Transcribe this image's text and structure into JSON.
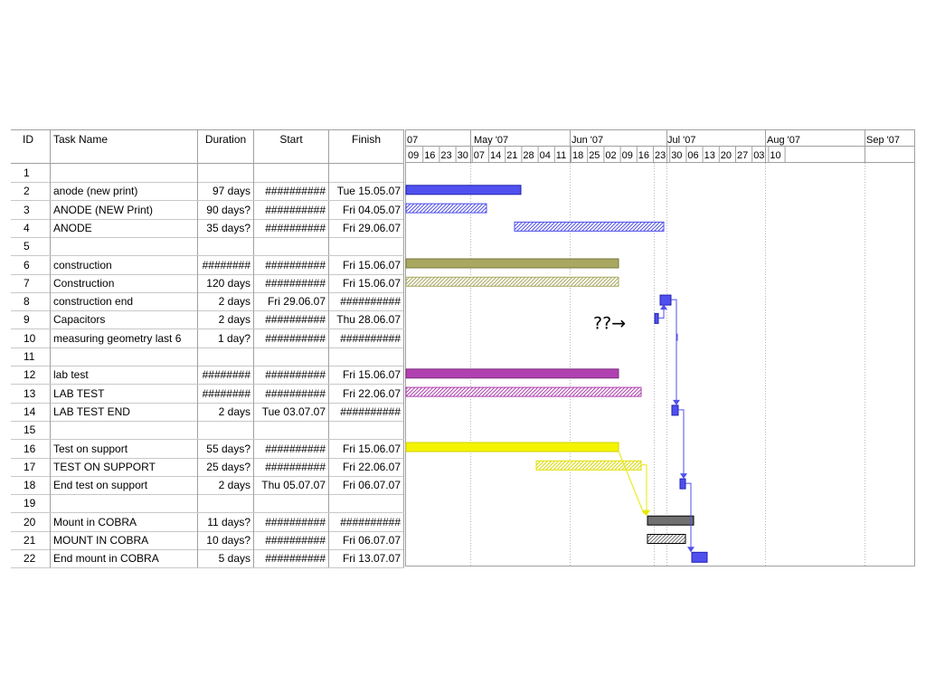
{
  "columns": {
    "id": "ID",
    "name": "Task Name",
    "duration": "Duration",
    "start": "Start",
    "finish": "Finish"
  },
  "timescale": {
    "months": [
      "07",
      "May '07",
      "Jun '07",
      "Jul '07",
      "Aug '07",
      "Sep '07"
    ],
    "weeks": [
      "09",
      "16",
      "23",
      "30",
      "07",
      "14",
      "21",
      "28",
      "04",
      "11",
      "18",
      "25",
      "02",
      "09",
      "16",
      "23",
      "30",
      "06",
      "13",
      "20",
      "27",
      "03",
      "10"
    ]
  },
  "tasks": [
    {
      "id": "1",
      "name": "",
      "duration": "",
      "start": "",
      "finish": ""
    },
    {
      "id": "2",
      "name": "anode (new print)",
      "duration": "97 days",
      "start": "##########",
      "finish": "Tue 15.05.07"
    },
    {
      "id": "3",
      "name": "ANODE (NEW Print)",
      "duration": "90 days?",
      "start": "##########",
      "finish": "Fri 04.05.07"
    },
    {
      "id": "4",
      "name": "ANODE",
      "duration": "35 days?",
      "start": "##########",
      "finish": "Fri 29.06.07"
    },
    {
      "id": "5",
      "name": "",
      "duration": "",
      "start": "",
      "finish": ""
    },
    {
      "id": "6",
      "name": "construction",
      "duration": "########",
      "start": "##########",
      "finish": "Fri 15.06.07"
    },
    {
      "id": "7",
      "name": "Construction",
      "duration": "120 days",
      "start": "##########",
      "finish": "Fri 15.06.07"
    },
    {
      "id": "8",
      "name": "construction end",
      "duration": "2 days",
      "start": "Fri 29.06.07",
      "finish": "##########"
    },
    {
      "id": "9",
      "name": "Capacitors",
      "duration": "2 days",
      "start": "##########",
      "finish": "Thu 28.06.07"
    },
    {
      "id": "10",
      "name": "measuring geometry last 6",
      "duration": "1 day?",
      "start": "##########",
      "finish": "##########"
    },
    {
      "id": "11",
      "name": "",
      "duration": "",
      "start": "",
      "finish": ""
    },
    {
      "id": "12",
      "name": "lab test",
      "duration": "########",
      "start": "##########",
      "finish": "Fri 15.06.07"
    },
    {
      "id": "13",
      "name": "LAB TEST",
      "duration": "########",
      "start": "##########",
      "finish": "Fri 22.06.07"
    },
    {
      "id": "14",
      "name": "LAB TEST END",
      "duration": "2 days",
      "start": "Tue 03.07.07",
      "finish": "##########"
    },
    {
      "id": "15",
      "name": "",
      "duration": "",
      "start": "",
      "finish": ""
    },
    {
      "id": "16",
      "name": "Test on support",
      "duration": "55 days?",
      "start": "##########",
      "finish": "Fri 15.06.07"
    },
    {
      "id": "17",
      "name": "TEST ON SUPPORT",
      "duration": "25 days?",
      "start": "##########",
      "finish": "Fri 22.06.07"
    },
    {
      "id": "18",
      "name": "End test on support",
      "duration": "2 days",
      "start": "Thu 05.07.07",
      "finish": "Fri 06.07.07"
    },
    {
      "id": "19",
      "name": "",
      "duration": "",
      "start": "",
      "finish": ""
    },
    {
      "id": "20",
      "name": "Mount in COBRA",
      "duration": "11 days?",
      "start": "##########",
      "finish": "##########"
    },
    {
      "id": "21",
      "name": "MOUNT IN COBRA",
      "duration": "10 days?",
      "start": "##########",
      "finish": "Fri 06.07.07"
    },
    {
      "id": "22",
      "name": "End mount in COBRA",
      "duration": "5 days",
      "start": "##########",
      "finish": "Fri 13.07.07"
    }
  ],
  "annotation": "??→",
  "colors": {
    "blue": "#5050ee",
    "olive": "#a8a860",
    "magenta": "#b040b0",
    "yellow": "#f4f400",
    "gray": "#707070",
    "grid": "#a0a0a0"
  }
}
